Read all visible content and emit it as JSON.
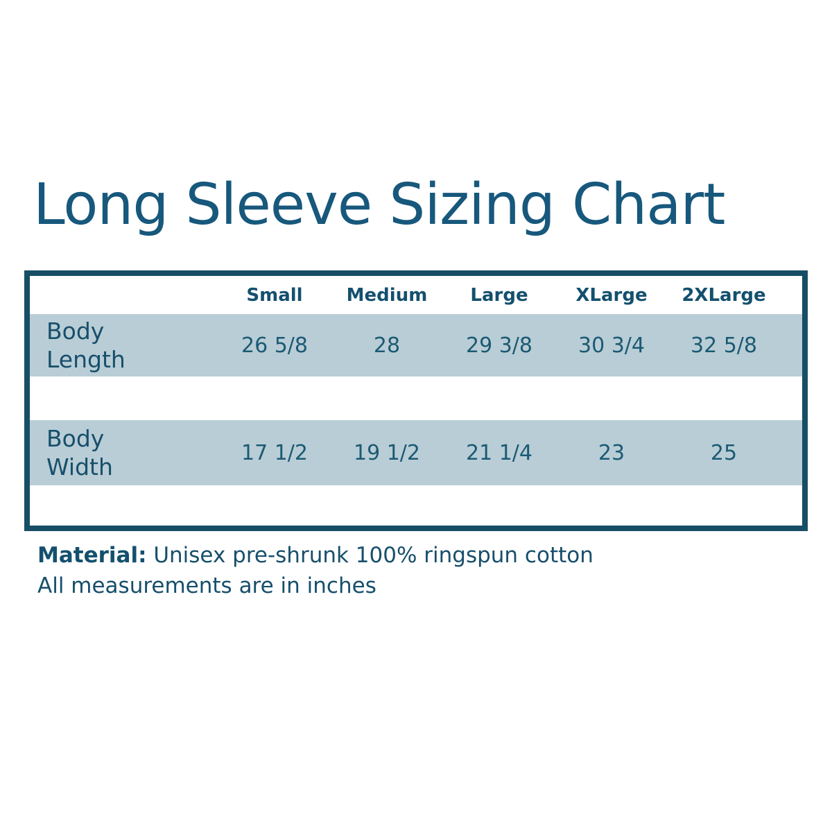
{
  "title": "Long Sleeve Sizing Chart",
  "table": {
    "columns": [
      "Small",
      "Medium",
      "Large",
      "XLarge",
      "2XLarge"
    ],
    "rows": [
      {
        "label": "Body Length",
        "values": [
          "26 5/8",
          "28",
          "29 3/8",
          "30 3/4",
          "32 5/8"
        ]
      },
      {
        "label": "Body Width",
        "values": [
          "17 1/2",
          "19 1/2",
          "21 1/4",
          "23",
          "25"
        ]
      }
    ]
  },
  "footer": {
    "material_label": "Material:",
    "material_value": " Unisex pre-shrunk 100% ringspun cotton",
    "note": "All measurements are in inches"
  },
  "colors": {
    "title_text": "#17587c",
    "table_border": "#164e66",
    "table_text": "#174f6b",
    "row_background": "#b9cdd6",
    "page_background": "#ffffff"
  },
  "chart_data": {
    "type": "table",
    "title": "Long Sleeve Sizing Chart",
    "columns": [
      "",
      "Small",
      "Medium",
      "Large",
      "XLarge",
      "2XLarge"
    ],
    "rows": [
      [
        "Body Length",
        "26 5/8",
        "28",
        "29 3/8",
        "30 3/4",
        "32 5/8"
      ],
      [
        "Body Width",
        "17 1/2",
        "19 1/2",
        "21 1/4",
        "23",
        "25"
      ]
    ],
    "notes": [
      "Material: Unisex pre-shrunk 100% ringspun cotton",
      "All measurements are in inches"
    ]
  }
}
